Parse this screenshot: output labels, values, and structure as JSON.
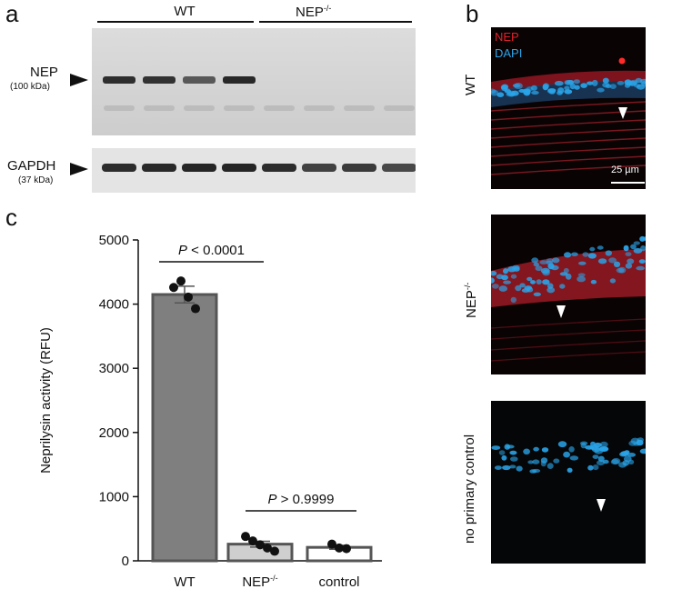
{
  "panels": {
    "a": "a",
    "b": "b",
    "c": "c"
  },
  "western_blot": {
    "group_wt": "WT",
    "group_nep": "NEP",
    "group_nep_sup": "-/-",
    "nep_label": "NEP",
    "nep_kda": "(100 kDa)",
    "gapdh_label": "GAPDH",
    "gapdh_kda": "(37 kDa)",
    "nep_band_intensity": [
      0.95,
      0.92,
      0.6,
      1.0,
      0,
      0,
      0,
      0
    ],
    "gapdh_band_intensity": [
      0.9,
      0.92,
      0.95,
      0.95,
      0.9,
      0.75,
      0.8,
      0.7
    ]
  },
  "micrographs": {
    "legend_nep": "NEP",
    "legend_dapi": "DAPI",
    "scale_bar": "25 µm",
    "row_wt": "WT",
    "row_nep": "NEP",
    "row_nep_sup": "-/-",
    "row_control": "no primary control",
    "nep_color": "#e0202a",
    "dapi_color": "#2aa4e8"
  },
  "chart_data": {
    "type": "bar",
    "ylabel": "Neprilysin activity (RFU)",
    "ylim": [
      0,
      5000
    ],
    "yticks": [
      0,
      1000,
      2000,
      3000,
      4000,
      5000
    ],
    "categories": [
      "WT",
      "NEP-/-",
      "control"
    ],
    "category_labels": [
      {
        "main": "WT",
        "sup": ""
      },
      {
        "main": "NEP",
        "sup": "-/-"
      },
      {
        "main": "control",
        "sup": ""
      }
    ],
    "values": [
      4150,
      260,
      210
    ],
    "sem": [
      130,
      45,
      30
    ],
    "bar_colors": [
      "#7f7f7f",
      "#cfcfcf",
      "#ffffff"
    ],
    "points": [
      [
        4260,
        4360,
        4110,
        3930
      ],
      [
        380,
        310,
        250,
        200,
        150
      ],
      [
        260,
        200,
        190
      ]
    ],
    "annotations": [
      {
        "p_label": "P",
        "text": " < 0.0001",
        "between": [
          "WT",
          "NEP-/-"
        ]
      },
      {
        "p_label": "P",
        "text": " > 0.9999",
        "between": [
          "NEP-/-",
          "control"
        ]
      }
    ]
  }
}
